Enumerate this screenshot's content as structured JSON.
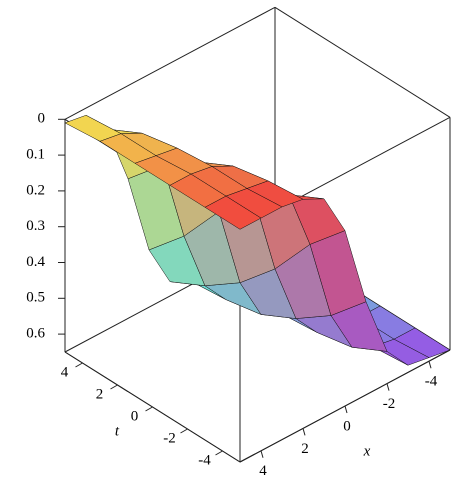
{
  "chart_data": {
    "type": "surface",
    "x_label": "x",
    "t_label": "t",
    "x": [
      -5,
      -4,
      -3,
      -2,
      -1,
      0,
      1,
      2,
      3,
      4,
      5
    ],
    "t": [
      5,
      3,
      1,
      -1,
      -3,
      -5
    ],
    "z": [
      [
        0.65,
        0.65,
        0.65,
        0.65,
        0.64,
        0.61,
        0.49,
        0.26,
        0.09,
        0.02,
        0.01
      ],
      [
        0.65,
        0.65,
        0.65,
        0.64,
        0.63,
        0.56,
        0.39,
        0.16,
        0.04,
        0.01,
        0
      ],
      [
        0.65,
        0.65,
        0.65,
        0.64,
        0.61,
        0.49,
        0.26,
        0.09,
        0.02,
        0.01,
        0
      ],
      [
        0.65,
        0.65,
        0.64,
        0.63,
        0.56,
        0.39,
        0.16,
        0.04,
        0.01,
        0,
        0
      ],
      [
        0.65,
        0.65,
        0.64,
        0.61,
        0.49,
        0.26,
        0.09,
        0.02,
        0.01,
        0,
        0
      ],
      [
        0.65,
        0.64,
        0.63,
        0.56,
        0.39,
        0.16,
        0.04,
        0.01,
        0,
        0,
        0
      ]
    ],
    "xlim": [
      -5,
      5
    ],
    "tlim": [
      -5,
      5
    ],
    "zlim": [
      0,
      0.65
    ],
    "z_reversed": true,
    "xticks": [
      4,
      2,
      0,
      -2,
      -4
    ],
    "tticks": [
      4,
      2,
      0,
      -2,
      -4
    ],
    "zticks": [
      0,
      0.1,
      0.2,
      0.3,
      0.4,
      0.5,
      0.6
    ],
    "corner_colors": {
      "top_front": "#f03c3c",
      "top_back": "#f5e650",
      "bottom_back": "#5ee8d8",
      "bottom_front": "#9a4ee6"
    }
  }
}
